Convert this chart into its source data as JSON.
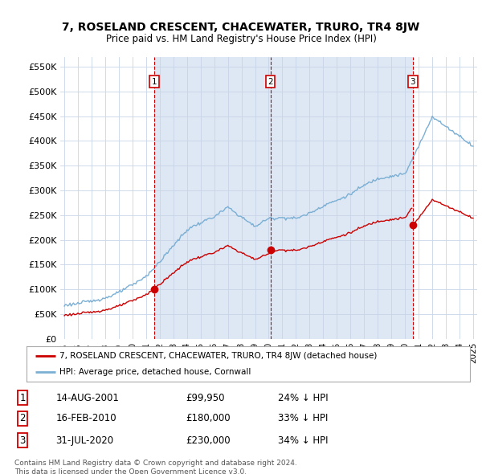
{
  "title": "7, ROSELAND CRESCENT, CHACEWATER, TRURO, TR4 8JW",
  "subtitle": "Price paid vs. HM Land Registry's House Price Index (HPI)",
  "hpi_color": "#7bafd4",
  "red_color": "#cc0000",
  "vline_color": "#cc0000",
  "grid_color": "#c8d4e8",
  "bg_color": "#ffffff",
  "shade_color": "#dde8f4",
  "fig_bg": "#ffffff",
  "ylim": [
    0,
    570000
  ],
  "yticks": [
    0,
    50000,
    100000,
    150000,
    200000,
    250000,
    300000,
    350000,
    400000,
    450000,
    500000,
    550000
  ],
  "ytick_labels": [
    "£0",
    "£50K",
    "£100K",
    "£150K",
    "£200K",
    "£250K",
    "£300K",
    "£350K",
    "£400K",
    "£450K",
    "£500K",
    "£550K"
  ],
  "xlim": [
    1994.7,
    2025.3
  ],
  "xticks": [
    1995,
    1996,
    1997,
    1998,
    1999,
    2000,
    2001,
    2002,
    2003,
    2004,
    2005,
    2006,
    2007,
    2008,
    2009,
    2010,
    2011,
    2012,
    2013,
    2014,
    2015,
    2016,
    2017,
    2018,
    2019,
    2020,
    2021,
    2022,
    2023,
    2024,
    2025
  ],
  "sale_years": [
    2001.62,
    2010.12,
    2020.58
  ],
  "sale_values": [
    99950,
    180000,
    230000
  ],
  "vline_labels": [
    "1",
    "2",
    "3"
  ],
  "sale_dates": [
    "14-AUG-2001",
    "16-FEB-2010",
    "31-JUL-2020"
  ],
  "sale_prices": [
    "£99,950",
    "£180,000",
    "£230,000"
  ],
  "sale_below": [
    "24% ↓ HPI",
    "33% ↓ HPI",
    "34% ↓ HPI"
  ],
  "legend_label_red": "7, ROSELAND CRESCENT, CHACEWATER, TRURO, TR4 8JW (detached house)",
  "legend_label_blue": "HPI: Average price, detached house, Cornwall",
  "footnote": "Contains HM Land Registry data © Crown copyright and database right 2024.\nThis data is licensed under the Open Government Licence v3.0."
}
